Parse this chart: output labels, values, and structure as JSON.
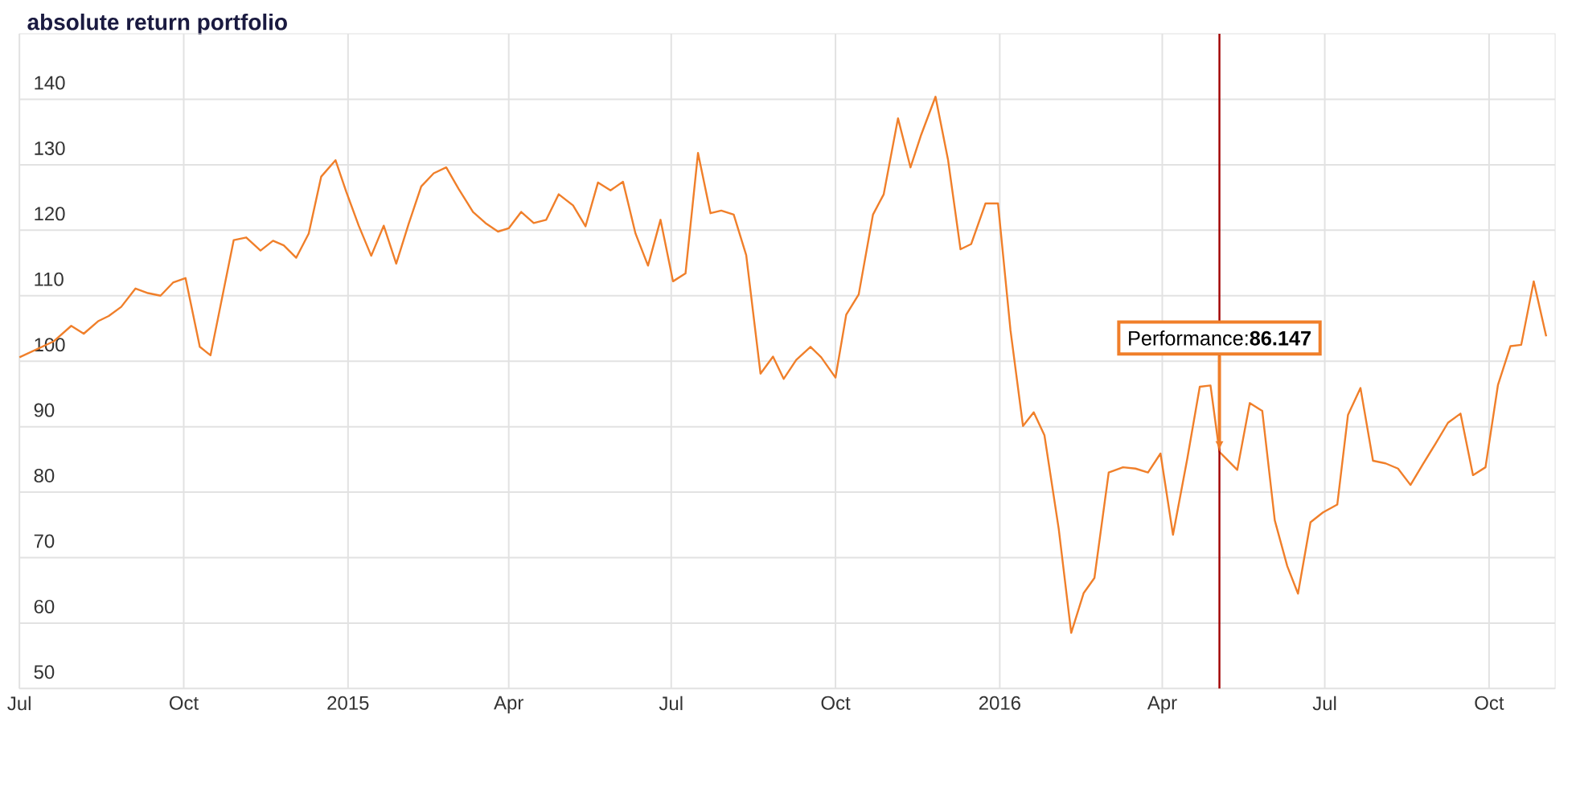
{
  "chart_data": {
    "type": "line",
    "title": "absolute return portfolio",
    "x": [
      "2014-07-01",
      "2014-07-20",
      "2014-07-30",
      "2014-08-06",
      "2014-08-14",
      "2014-08-20",
      "2014-08-27",
      "2014-09-04",
      "2014-09-11",
      "2014-09-18",
      "2014-09-25",
      "2014-10-02",
      "2014-10-10",
      "2014-10-16",
      "2014-10-29",
      "2014-11-05",
      "2014-11-13",
      "2014-11-20",
      "2014-11-26",
      "2014-12-03",
      "2014-12-10",
      "2014-12-17",
      "2014-12-25",
      "2014-12-31",
      "2015-01-07",
      "2015-01-14",
      "2015-01-21",
      "2015-01-28",
      "2015-02-04",
      "2015-02-11",
      "2015-02-18",
      "2015-02-25",
      "2015-03-04",
      "2015-03-12",
      "2015-03-19",
      "2015-03-26",
      "2015-04-01",
      "2015-04-08",
      "2015-04-15",
      "2015-04-22",
      "2015-04-29",
      "2015-05-07",
      "2015-05-14",
      "2015-05-21",
      "2015-05-28",
      "2015-06-04",
      "2015-06-11",
      "2015-06-18",
      "2015-06-25",
      "2015-07-02",
      "2015-07-09",
      "2015-07-16",
      "2015-07-23",
      "2015-07-29",
      "2015-08-05",
      "2015-08-12",
      "2015-08-20",
      "2015-08-27",
      "2015-09-02",
      "2015-09-09",
      "2015-09-17",
      "2015-09-23",
      "2015-10-01",
      "2015-10-07",
      "2015-10-14",
      "2015-10-22",
      "2015-10-28",
      "2015-11-05",
      "2015-11-12",
      "2015-11-18",
      "2015-11-26",
      "2015-12-03",
      "2015-12-10",
      "2015-12-16",
      "2015-12-24",
      "2015-12-31",
      "2016-01-07",
      "2016-01-14",
      "2016-01-20",
      "2016-01-26",
      "2016-02-03",
      "2016-02-10",
      "2016-02-17",
      "2016-02-23",
      "2016-03-02",
      "2016-03-10",
      "2016-03-17",
      "2016-03-24",
      "2016-03-31",
      "2016-04-07",
      "2016-04-15",
      "2016-04-22",
      "2016-04-28",
      "2016-05-03",
      "2016-05-13",
      "2016-05-20",
      "2016-05-27",
      "2016-06-03",
      "2016-06-10",
      "2016-06-16",
      "2016-06-23",
      "2016-06-30",
      "2016-07-08",
      "2016-07-14",
      "2016-07-21",
      "2016-07-28",
      "2016-08-04",
      "2016-08-11",
      "2016-08-18",
      "2016-08-25",
      "2016-09-01",
      "2016-09-08",
      "2016-09-15",
      "2016-09-22",
      "2016-09-29",
      "2016-10-06",
      "2016-10-13",
      "2016-10-19",
      "2016-10-26",
      "2016-11-02"
    ],
    "series": [
      {
        "color": "#f07f2a",
        "values": [
          100.6,
          103,
          105.4,
          104.2,
          106.1,
          106.9,
          108.3,
          111.1,
          110.4,
          110,
          112,
          112.7,
          102.2,
          100.9,
          118.5,
          118.9,
          116.9,
          118.4,
          117.7,
          115.8,
          119.5,
          128.2,
          130.7,
          125.9,
          120.7,
          116.1,
          120.7,
          114.9,
          121,
          126.7,
          128.7,
          129.6,
          126.3,
          122.8,
          121.1,
          119.8,
          120.3,
          122.8,
          121.1,
          121.6,
          125.5,
          123.8,
          120.6,
          127.3,
          126.1,
          127.4,
          119.5,
          114.6,
          121.6,
          112.2,
          113.4,
          131.8,
          122.6,
          123,
          122.4,
          116.2,
          98.1,
          100.7,
          97.3,
          100.2,
          102.2,
          100.6,
          97.5,
          107.1,
          110.2,
          122.4,
          125.5,
          137.1,
          129.6,
          134.6,
          140.4,
          130.8,
          117.1,
          117.9,
          124.1,
          124.1,
          104.7,
          90.1,
          92.2,
          88.7,
          74.4,
          58.5,
          64.6,
          66.9,
          83,
          83.8,
          83.6,
          83,
          85.9,
          73.5,
          85.1,
          96.1,
          96.3,
          86.147,
          83.4,
          93.6,
          92.4,
          75.7,
          68.7,
          64.5,
          75.4,
          76.9,
          78.1,
          91.8,
          95.9,
          84.8,
          84.4,
          83.6,
          81.1,
          84.3,
          87.4,
          90.6,
          92,
          82.6,
          83.8,
          96.4,
          102.3,
          102.5,
          112.2,
          103.8
        ]
      }
    ],
    "xlim": [
      "2014-07-01",
      "2016-11-07"
    ],
    "xticks": [
      {
        "value": "2014-07-01",
        "label": "Jul"
      },
      {
        "value": "2014-10-01",
        "label": "Oct"
      },
      {
        "value": "2015-01-01",
        "label": "2015"
      },
      {
        "value": "2015-04-01",
        "label": "Apr"
      },
      {
        "value": "2015-07-01",
        "label": "Jul"
      },
      {
        "value": "2015-10-01",
        "label": "Oct"
      },
      {
        "value": "2016-01-01",
        "label": "2016"
      },
      {
        "value": "2016-04-01",
        "label": "Apr"
      },
      {
        "value": "2016-07-01",
        "label": "Jul"
      },
      {
        "value": "2016-10-01",
        "label": "Oct"
      }
    ],
    "ylim": [
      50,
      150
    ],
    "yticks": [
      50,
      60,
      70,
      80,
      90,
      100,
      110,
      120,
      130,
      140
    ],
    "grid": true,
    "ref_lines": [
      {
        "axis": "x",
        "value": "2016-05-03",
        "color": "#a00000"
      }
    ],
    "annotations": [
      {
        "text": "Performance:**86.147**",
        "x": "2016-05-03",
        "y": 86.147
      }
    ]
  }
}
